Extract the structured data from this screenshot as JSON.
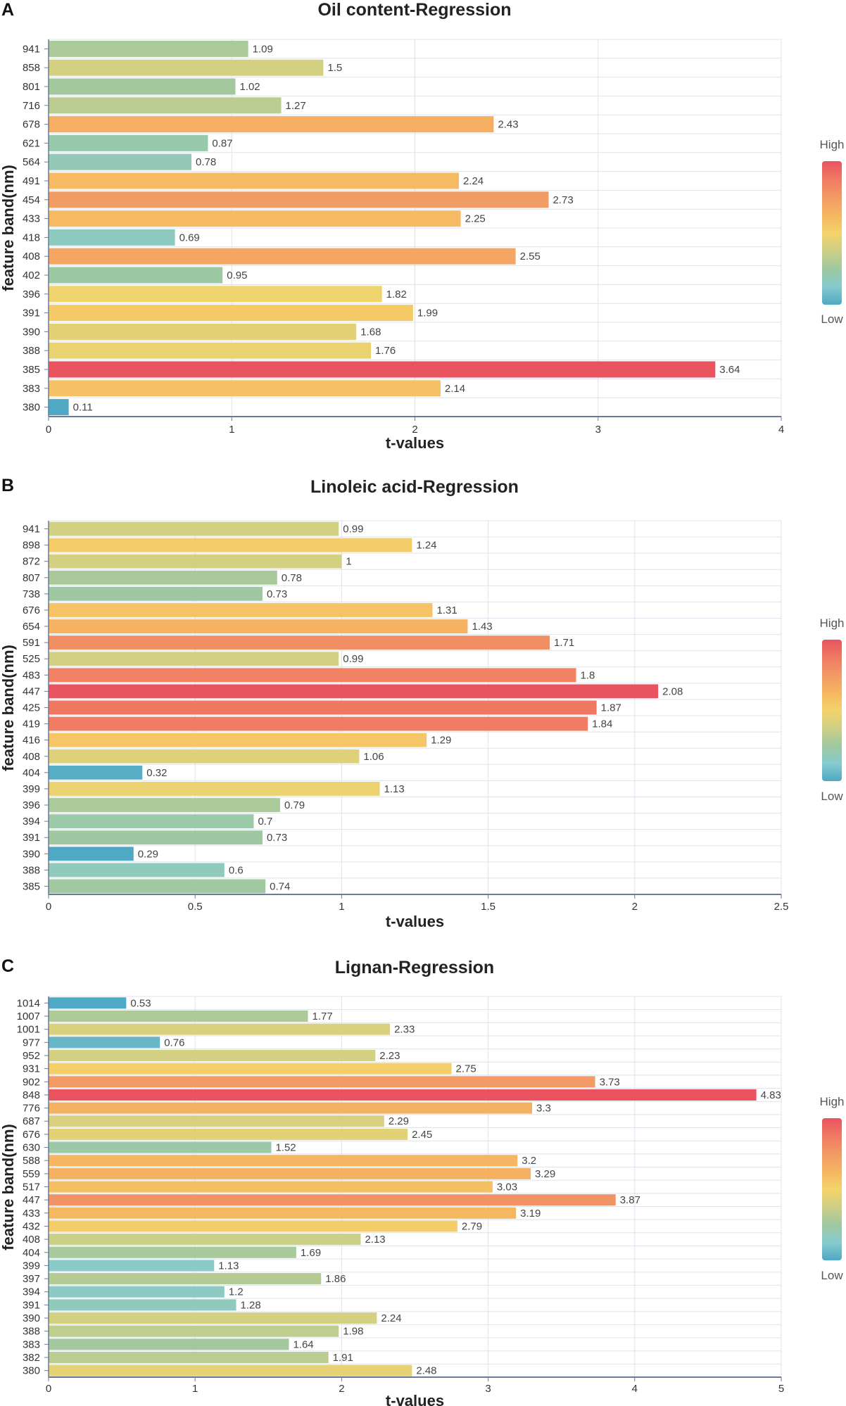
{
  "chart_data": [
    {
      "type": "bar",
      "orientation": "horizontal",
      "panel": "A",
      "title": "Oil content-Regression",
      "xlabel": "t-values",
      "ylabel": "feature band(nm)",
      "xlim": [
        0,
        4
      ],
      "xticks": [
        "0",
        "1",
        "2",
        "3",
        "4"
      ],
      "categories": [
        "941",
        "858",
        "801",
        "716",
        "678",
        "621",
        "564",
        "491",
        "454",
        "433",
        "418",
        "408",
        "402",
        "396",
        "391",
        "390",
        "388",
        "385",
        "383",
        "380"
      ],
      "values": [
        1.09,
        1.5,
        1.02,
        1.27,
        2.43,
        0.87,
        0.78,
        2.24,
        2.73,
        2.25,
        0.69,
        2.55,
        0.95,
        1.82,
        1.99,
        1.68,
        1.76,
        3.64,
        2.14,
        0.11
      ],
      "labels": [
        "1.09",
        "1.5",
        "1.02",
        "1.27",
        "2.43",
        "0.87",
        "0.78",
        "2.24",
        "2.73",
        "2.25",
        "0.69",
        "2.55",
        "0.95",
        "1.82",
        "1.99",
        "1.68",
        "1.76",
        "3.64",
        "2.14",
        "0.11"
      ],
      "legend": {
        "high": "High",
        "low": "Low"
      }
    },
    {
      "type": "bar",
      "orientation": "horizontal",
      "panel": "B",
      "title": "Linoleic acid-Regression",
      "xlabel": "t-values",
      "ylabel": "feature band(nm)",
      "xlim": [
        0,
        2.5
      ],
      "xticks": [
        "0",
        "0.5",
        "1",
        "1.5",
        "2",
        "2.5"
      ],
      "categories": [
        "941",
        "898",
        "872",
        "807",
        "738",
        "676",
        "654",
        "591",
        "525",
        "483",
        "447",
        "425",
        "419",
        "416",
        "408",
        "404",
        "399",
        "396",
        "394",
        "391",
        "390",
        "388",
        "385"
      ],
      "values": [
        0.99,
        1.24,
        1,
        0.78,
        0.73,
        1.31,
        1.43,
        1.71,
        0.99,
        1.8,
        2.08,
        1.87,
        1.84,
        1.29,
        1.06,
        0.32,
        1.13,
        0.79,
        0.7,
        0.73,
        0.29,
        0.6,
        0.74
      ],
      "labels": [
        "0.99",
        "1.24",
        "1",
        "0.78",
        "0.73",
        "1.31",
        "1.43",
        "1.71",
        "0.99",
        "1.8",
        "2.08",
        "1.87",
        "1.84",
        "1.29",
        "1.06",
        "0.32",
        "1.13",
        "0.79",
        "0.7",
        "0.73",
        "0.29",
        "0.6",
        "0.74"
      ],
      "legend": {
        "high": "High",
        "low": "Low"
      }
    },
    {
      "type": "bar",
      "orientation": "horizontal",
      "panel": "C",
      "title": "Lignan-Regression",
      "xlabel": "t-values",
      "ylabel": "feature band(nm)",
      "xlim": [
        0,
        5
      ],
      "xticks": [
        "0",
        "1",
        "2",
        "3",
        "4",
        "5"
      ],
      "categories": [
        "1014",
        "1007",
        "1001",
        "977",
        "952",
        "931",
        "902",
        "848",
        "776",
        "687",
        "676",
        "630",
        "588",
        "559",
        "517",
        "447",
        "433",
        "432",
        "408",
        "404",
        "399",
        "397",
        "394",
        "391",
        "390",
        "388",
        "383",
        "382",
        "380"
      ],
      "values": [
        0.53,
        1.77,
        2.33,
        0.76,
        2.23,
        2.75,
        3.73,
        4.83,
        3.3,
        2.29,
        2.45,
        1.52,
        3.2,
        3.29,
        3.03,
        3.87,
        3.19,
        2.79,
        2.13,
        1.69,
        1.13,
        1.86,
        1.2,
        1.28,
        2.24,
        1.98,
        1.64,
        1.91,
        2.48
      ],
      "labels": [
        "0.53",
        "1.77",
        "2.33",
        "0.76",
        "2.23",
        "2.75",
        "3.73",
        "4.83",
        "3.3",
        "2.29",
        "2.45",
        "1.52",
        "3.2",
        "3.29",
        "3.03",
        "3.87",
        "3.19",
        "2.79",
        "2.13",
        "1.69",
        "1.13",
        "1.86",
        "1.2",
        "1.28",
        "2.24",
        "1.98",
        "1.64",
        "1.91",
        "2.48"
      ],
      "legend": {
        "high": "High",
        "low": "Low"
      }
    }
  ],
  "colors": {
    "palette": [
      "#4fa8c4",
      "#86cbce",
      "#a0c8a0",
      "#cdcf86",
      "#f4d36a",
      "#f6b561",
      "#f29a65",
      "#f07a63",
      "#e8535f"
    ],
    "grid": "#dde3ec",
    "axis": "#6b7a99"
  }
}
